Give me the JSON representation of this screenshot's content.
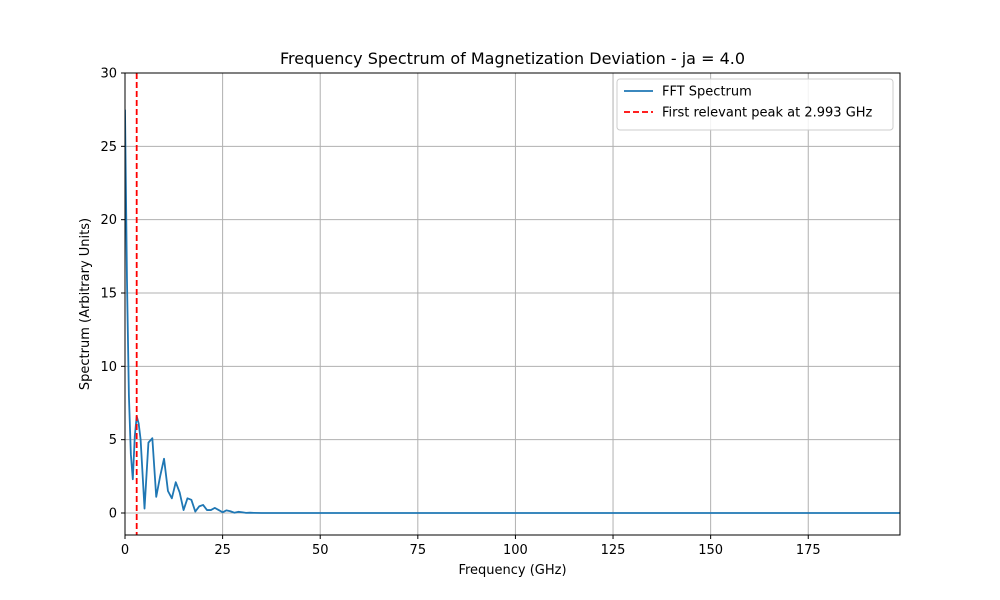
{
  "chart_data": {
    "type": "line",
    "title": "Frequency Spectrum of Magnetization Deviation - ja = 4.0",
    "xlabel": "Frequency (GHz)",
    "ylabel": "Spectrum (Arbitrary Units)",
    "xlim": [
      0,
      198.5
    ],
    "ylim": [
      -1.5,
      30
    ],
    "x_ticks": [
      0,
      25,
      50,
      75,
      100,
      125,
      150,
      175
    ],
    "y_ticks": [
      0,
      5,
      10,
      15,
      20,
      25,
      30
    ],
    "grid": true,
    "legend_position": "top-right",
    "series": [
      {
        "name": "FFT Spectrum",
        "color": "#1f77b4",
        "style": "solid",
        "x": [
          0,
          0.5,
          1.0,
          1.5,
          2.0,
          2.5,
          3.0,
          3.5,
          4.0,
          5.0,
          6.0,
          7.0,
          8.0,
          9.0,
          10.0,
          11.0,
          12.0,
          13.0,
          14.0,
          15.0,
          16.0,
          17.0,
          18.0,
          19.0,
          20.0,
          21.0,
          22.0,
          23.0,
          24.0,
          25.0,
          26.0,
          27.0,
          28.0,
          29.0,
          30.0,
          31.0,
          32.0,
          33.0,
          35.0,
          40.0,
          60.0,
          100.0,
          150.0,
          198.5
        ],
        "y": [
          27.5,
          16.0,
          8.0,
          4.0,
          2.3,
          5.2,
          6.6,
          6.1,
          5.0,
          0.3,
          4.8,
          5.1,
          1.1,
          2.5,
          3.7,
          1.5,
          1.0,
          2.1,
          1.4,
          0.2,
          1.0,
          0.9,
          0.1,
          0.45,
          0.55,
          0.2,
          0.2,
          0.35,
          0.2,
          0.05,
          0.18,
          0.12,
          0.02,
          0.08,
          0.05,
          0.01,
          0.02,
          0.01,
          0.0,
          0.0,
          0.0,
          0.0,
          0.0,
          0.0
        ]
      },
      {
        "name": "First relevant peak at 2.993 GHz",
        "color": "#ff0000",
        "style": "dashed",
        "vline_x": 2.993
      }
    ]
  }
}
